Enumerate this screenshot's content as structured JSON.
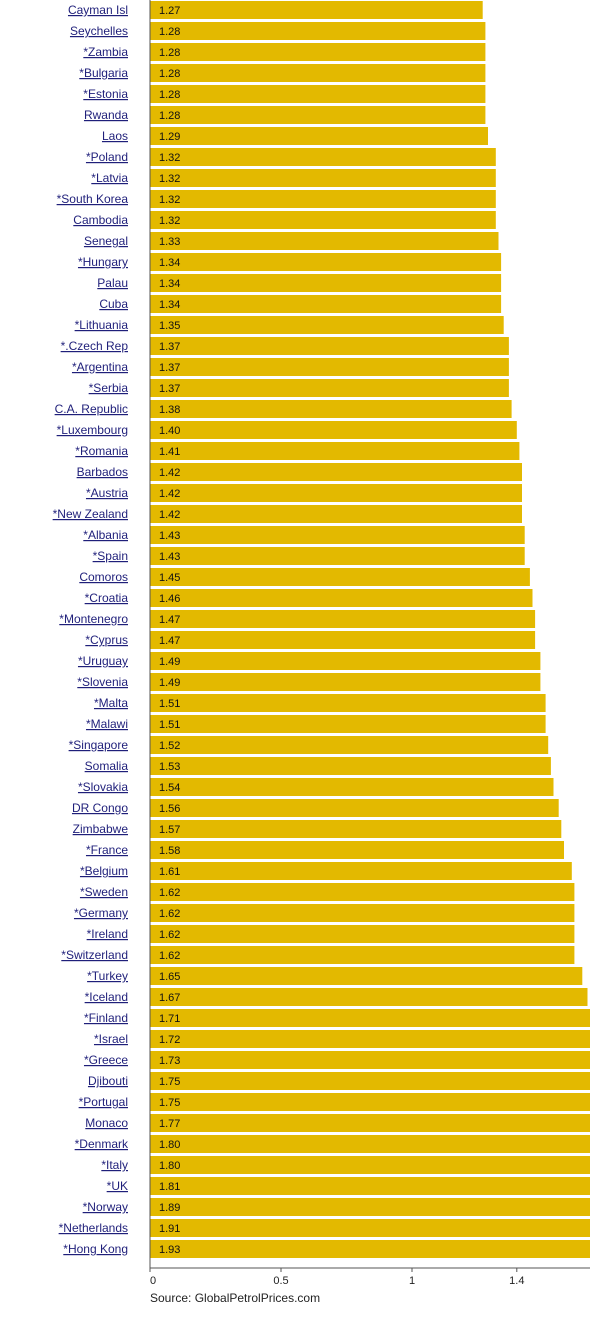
{
  "chart_data": {
    "type": "bar",
    "orientation": "horizontal",
    "categories": [
      " Cayman Isl",
      " Seychelles",
      "*Zambia",
      "*Bulgaria",
      "*Estonia",
      " Rwanda",
      " Laos",
      "*Poland",
      "*Latvia",
      "*South Korea",
      " Cambodia",
      " Senegal",
      "*Hungary",
      " Palau",
      " Cuba",
      "*Lithuania",
      "*.Czech Rep",
      "*Argentina",
      "*Serbia",
      " C.A. Republic",
      "*Luxembourg",
      "*Romania",
      " Barbados",
      "*Austria",
      "*New Zealand",
      "*Albania",
      "*Spain",
      " Comoros",
      "*Croatia",
      "*Montenegro",
      "*Cyprus",
      "*Uruguay",
      "*Slovenia",
      "*Malta",
      "*Malawi",
      "*Singapore",
      " Somalia",
      "*Slovakia",
      " DR Congo",
      " Zimbabwe",
      "*France",
      "*Belgium",
      "*Sweden",
      "*Germany",
      "*Ireland",
      "*Switzerland",
      "*Turkey",
      "*Iceland",
      "*Finland",
      "*Israel",
      "*Greece",
      " Djibouti",
      "*Portugal",
      " Monaco",
      "*Denmark",
      "*Italy",
      "*UK",
      "*Norway",
      "*Netherlands",
      "*Hong Kong"
    ],
    "values": [
      1.27,
      1.28,
      1.28,
      1.28,
      1.28,
      1.28,
      1.29,
      1.32,
      1.32,
      1.32,
      1.32,
      1.33,
      1.34,
      1.34,
      1.34,
      1.35,
      1.37,
      1.37,
      1.37,
      1.38,
      1.4,
      1.41,
      1.42,
      1.42,
      1.42,
      1.43,
      1.43,
      1.45,
      1.46,
      1.47,
      1.47,
      1.49,
      1.49,
      1.51,
      1.51,
      1.52,
      1.53,
      1.54,
      1.56,
      1.57,
      1.58,
      1.61,
      1.62,
      1.62,
      1.62,
      1.62,
      1.65,
      1.67,
      1.71,
      1.72,
      1.73,
      1.75,
      1.75,
      1.77,
      1.8,
      1.8,
      1.81,
      1.89,
      1.91,
      1.93
    ],
    "value_labels": [
      "1.27",
      "1.28",
      "1.28",
      "1.28",
      "1.28",
      "1.28",
      "1.29",
      "1.32",
      "1.32",
      "1.32",
      "1.32",
      "1.33",
      "1.34",
      "1.34",
      "1.34",
      "1.35",
      "1.37",
      "1.37",
      "1.37",
      "1.38",
      "1.40",
      "1.41",
      "1.42",
      "1.42",
      "1.42",
      "1.43",
      "1.43",
      "1.45",
      "1.46",
      "1.47",
      "1.47",
      "1.49",
      "1.49",
      "1.51",
      "1.51",
      "1.52",
      "1.53",
      "1.54",
      "1.56",
      "1.57",
      "1.58",
      "1.61",
      "1.62",
      "1.62",
      "1.62",
      "1.62",
      "1.65",
      "1.67",
      "1.71",
      "1.72",
      "1.73",
      "1.75",
      "1.75",
      "1.77",
      "1.80",
      "1.80",
      "1.81",
      "1.89",
      "1.91",
      "1.93"
    ],
    "xticks": [
      0,
      0.5,
      1,
      1.4
    ],
    "xtick_labels": [
      "0",
      "0.5",
      "1",
      "1.4"
    ],
    "xlim": [
      0,
      1.6
    ],
    "title": "",
    "xlabel": "",
    "ylabel": "",
    "grid": false,
    "bar_color": "#e3b900",
    "source_note": "Source:  GlobalPetrolPrices.com"
  }
}
